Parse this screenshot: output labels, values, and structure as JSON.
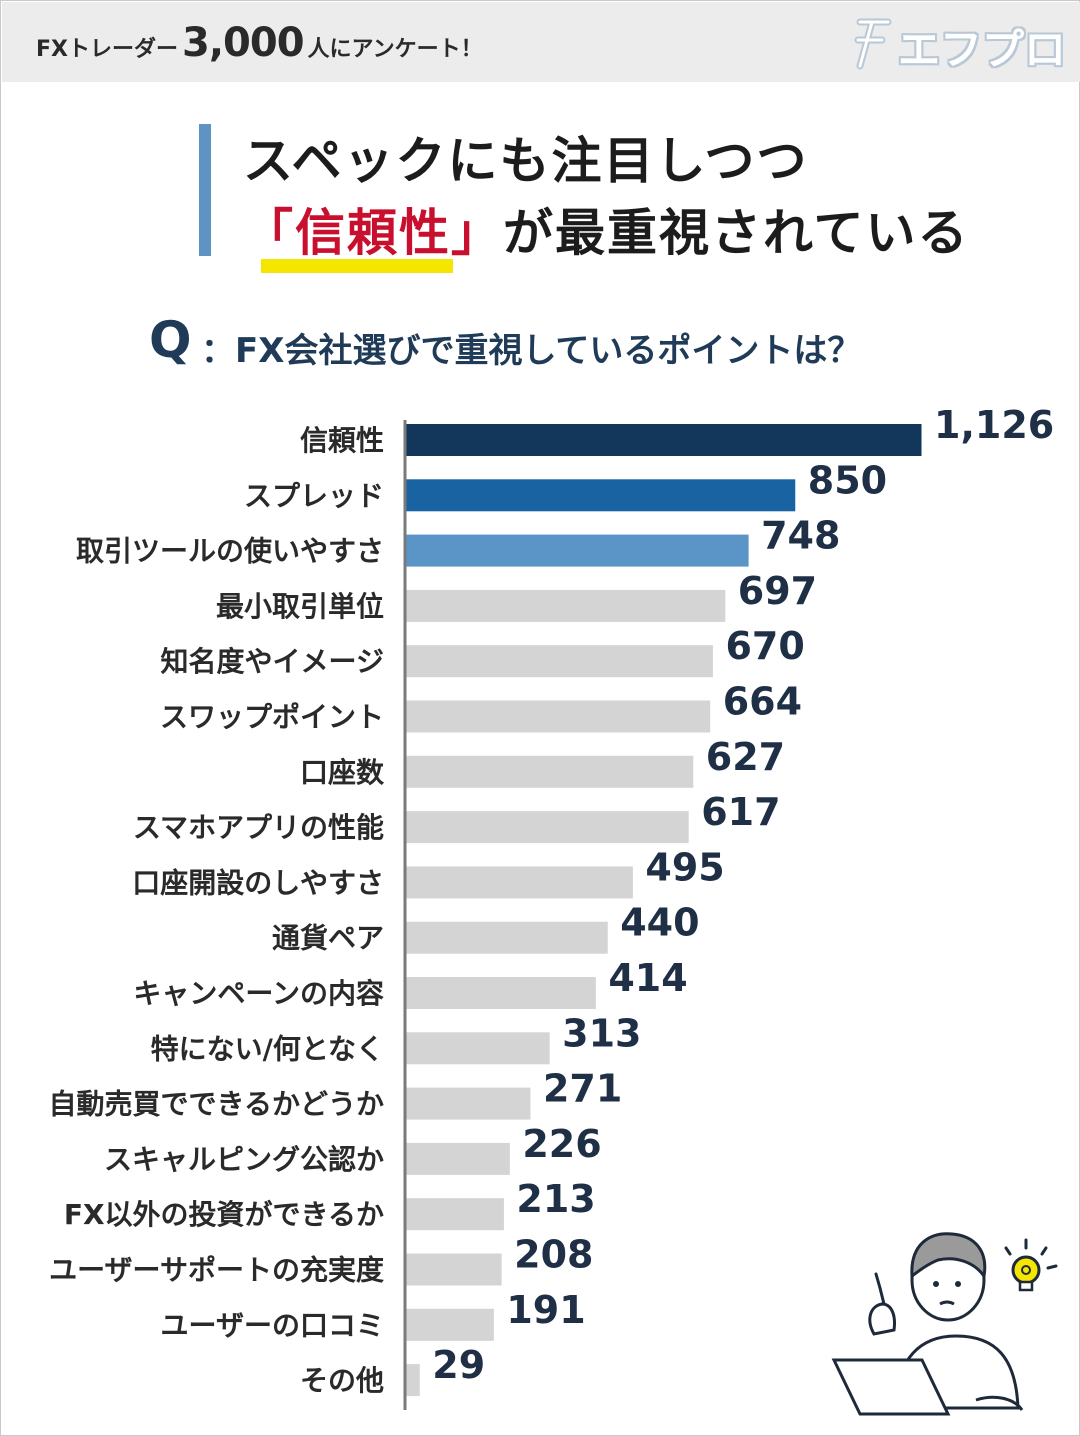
{
  "header": {
    "prefix": "FXトレーダー",
    "count": "3,000",
    "suffix": "人にアンケート！",
    "logo": "エフプロ"
  },
  "headline": {
    "line1": "スペックにも注目しつつ",
    "line2_highlight": "「信頼性」",
    "line2_rest": "が最重視されている"
  },
  "question": {
    "mark": "Q",
    "text": "：FX会社選びで重視しているポイントは？"
  },
  "colors": {
    "top1": "#13375a",
    "top2": "#1a63a3",
    "top3": "#5b94c6",
    "rest": "#d4d4d4",
    "axis": "#7a7a7a"
  },
  "chart_data": {
    "type": "bar",
    "orientation": "horizontal",
    "categories": [
      "信頼性",
      "スプレッド",
      "取引ツールの使いやすさ",
      "最小取引単位",
      "知名度やイメージ",
      "スワップポイント",
      "口座数",
      "スマホアプリの性能",
      "口座開設のしやすさ",
      "通貨ペア",
      "キャンペーンの内容",
      "特にない/何となく",
      "自動売買でできるかどうか",
      "スキャルピング公認か",
      "FX以外の投資ができるか",
      "ユーザーサポートの充実度",
      "ユーザーの口コミ",
      "その他"
    ],
    "values": [
      1126,
      850,
      748,
      697,
      670,
      664,
      627,
      617,
      495,
      440,
      414,
      313,
      271,
      226,
      213,
      208,
      191,
      29
    ],
    "value_labels": [
      "1,126",
      "850",
      "748",
      "697",
      "670",
      "664",
      "627",
      "617",
      "495",
      "440",
      "414",
      "313",
      "271",
      "226",
      "213",
      "208",
      "191",
      "29"
    ],
    "title": "",
    "xlabel": "",
    "ylabel": "",
    "xlim": [
      0,
      1126
    ],
    "grid": false,
    "legend": "none"
  },
  "illustration": {
    "icons": [
      "person-icon",
      "laptop-icon",
      "lightbulb-icon"
    ]
  }
}
